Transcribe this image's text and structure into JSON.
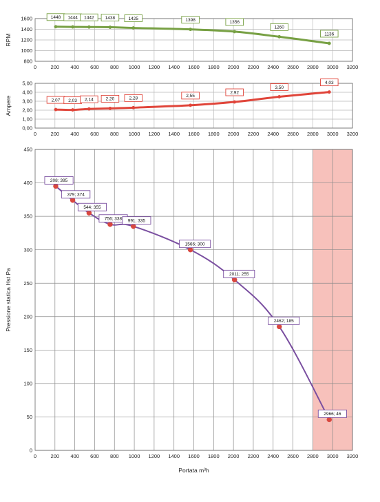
{
  "chart_data": [
    {
      "type": "line",
      "ylabel": "RPM",
      "xlabel": "",
      "xlim": [
        0,
        3200
      ],
      "ylim": [
        800,
        1600
      ],
      "x_ticks": [
        0,
        200,
        400,
        600,
        800,
        1000,
        1200,
        1400,
        1600,
        1800,
        2000,
        2200,
        2400,
        2600,
        2800,
        3000,
        3200
      ],
      "y_ticks": [
        800,
        1000,
        1200,
        1400,
        1600
      ],
      "y_tick_labels": [
        "800",
        "1000",
        "1200",
        "1400",
        "1600"
      ],
      "grid": true,
      "color": "#77a043",
      "label_border": "#77a043",
      "x": [
        208,
        379,
        544,
        756,
        991,
        1566,
        2011,
        2462,
        2966
      ],
      "y": [
        1448,
        1444,
        1442,
        1438,
        1425,
        1398,
        1356,
        1260,
        1136
      ],
      "point_labels": [
        "1448",
        "1444",
        "1442",
        "1438",
        "1425",
        "1398",
        "1356",
        "1260",
        "1136"
      ]
    },
    {
      "type": "line",
      "ylabel": "Ampere",
      "xlabel": "",
      "xlim": [
        0,
        3200
      ],
      "ylim": [
        0,
        5
      ],
      "x_ticks": [
        0,
        200,
        400,
        600,
        800,
        1000,
        1200,
        1400,
        1600,
        1800,
        2000,
        2200,
        2400,
        2600,
        2800,
        3000,
        3200
      ],
      "y_ticks": [
        0,
        1,
        2,
        3,
        4,
        5
      ],
      "y_tick_labels": [
        "0,00",
        "1,00",
        "2,00",
        "3,00",
        "4,00",
        "5,00"
      ],
      "grid": true,
      "color": "#e0453a",
      "label_border": "#e0453a",
      "x": [
        208,
        379,
        544,
        756,
        991,
        1566,
        2011,
        2462,
        2966
      ],
      "y": [
        2.07,
        2.03,
        2.14,
        2.2,
        2.28,
        2.55,
        2.92,
        3.5,
        4.03
      ],
      "point_labels": [
        "2,07",
        "2,03",
        "2,14",
        "2,20",
        "2,28",
        "2,55",
        "2,92",
        "3,50",
        "4,03"
      ]
    },
    {
      "type": "line",
      "ylabel": "Pressione statica Hst Pa",
      "xlabel": "Portata  m³h",
      "xlim": [
        0,
        3200
      ],
      "ylim": [
        0,
        450
      ],
      "x_ticks": [
        0,
        200,
        400,
        600,
        800,
        1000,
        1200,
        1400,
        1600,
        1800,
        2000,
        2200,
        2400,
        2600,
        2800,
        3000,
        3200
      ],
      "y_ticks": [
        0,
        50,
        100,
        150,
        200,
        250,
        300,
        350,
        400,
        450
      ],
      "y_tick_labels": [
        "0",
        "50",
        "100",
        "150",
        "200",
        "250",
        "300",
        "350",
        "400",
        "450"
      ],
      "grid": true,
      "color": "#7a4fa0",
      "marker_color": "#d9473f",
      "label_border": "#7a4fa0",
      "shaded_x_range": [
        2800,
        3200
      ],
      "shade_color": "#f7c1bb",
      "x": [
        208,
        379,
        544,
        756,
        991,
        1566,
        2011,
        2462,
        2966
      ],
      "y": [
        395,
        374,
        355,
        338,
        335,
        300,
        255,
        185,
        46
      ],
      "point_labels": [
        "208; 395",
        "379; 374",
        "544; 355",
        "756; 338",
        "991; 335",
        "1566; 300",
        "2011; 255",
        "2462; 185",
        "2966; 46"
      ]
    }
  ]
}
